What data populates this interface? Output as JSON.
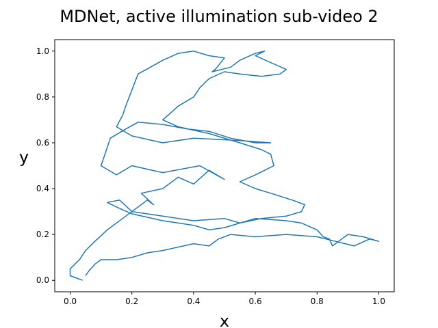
{
  "chart_data": {
    "type": "line",
    "title": "MDNet, active illumination sub-video 2",
    "x_label": "x",
    "y_label": "y",
    "color": "#1f77b4",
    "x": [
      0.04,
      0.0,
      0.0,
      0.03,
      0.05,
      0.08,
      0.12,
      0.17,
      0.2,
      0.25,
      0.27,
      0.23,
      0.3,
      0.35,
      0.4,
      0.45,
      0.5,
      0.42,
      0.3,
      0.2,
      0.15,
      0.1,
      0.12,
      0.13,
      0.18,
      0.22,
      0.3,
      0.38,
      0.45,
      0.52,
      0.6,
      0.65,
      0.55,
      0.4,
      0.3,
      0.2,
      0.15,
      0.17,
      0.18,
      0.2,
      0.22,
      0.26,
      0.3,
      0.35,
      0.4,
      0.45,
      0.5,
      0.47,
      0.46,
      0.52,
      0.55,
      0.6,
      0.63,
      0.6,
      0.65,
      0.7,
      0.68,
      0.62,
      0.55,
      0.5,
      0.45,
      0.42,
      0.4,
      0.35,
      0.3,
      0.35,
      0.45,
      0.55,
      0.62,
      0.65,
      0.66,
      0.6,
      0.55,
      0.6,
      0.65,
      0.72,
      0.76,
      0.75,
      0.7,
      0.62,
      0.55,
      0.5,
      0.45,
      0.4,
      0.3,
      0.2,
      0.15,
      0.12,
      0.16,
      0.2,
      0.3,
      0.4,
      0.5,
      0.55,
      0.6,
      0.7,
      0.75,
      0.8,
      0.82,
      0.84,
      0.85,
      0.88,
      0.9,
      0.95,
      1.0,
      0.97,
      0.92,
      0.86,
      0.8,
      0.7,
      0.6,
      0.52,
      0.48,
      0.45,
      0.4,
      0.3,
      0.25,
      0.2,
      0.15,
      0.1,
      0.08,
      0.06,
      0.05
    ],
    "values": [
      0.0,
      0.02,
      0.05,
      0.09,
      0.13,
      0.17,
      0.22,
      0.27,
      0.3,
      0.35,
      0.33,
      0.38,
      0.4,
      0.45,
      0.42,
      0.48,
      0.44,
      0.5,
      0.47,
      0.5,
      0.46,
      0.5,
      0.58,
      0.62,
      0.66,
      0.69,
      0.68,
      0.66,
      0.65,
      0.62,
      0.6,
      0.6,
      0.61,
      0.62,
      0.6,
      0.63,
      0.67,
      0.72,
      0.76,
      0.83,
      0.9,
      0.93,
      0.96,
      0.99,
      1.0,
      0.98,
      0.97,
      0.92,
      0.91,
      0.93,
      0.96,
      0.99,
      1.0,
      0.98,
      0.95,
      0.92,
      0.9,
      0.89,
      0.9,
      0.91,
      0.88,
      0.84,
      0.8,
      0.76,
      0.7,
      0.67,
      0.64,
      0.6,
      0.57,
      0.55,
      0.5,
      0.46,
      0.43,
      0.4,
      0.38,
      0.35,
      0.33,
      0.3,
      0.28,
      0.27,
      0.25,
      0.23,
      0.22,
      0.24,
      0.26,
      0.29,
      0.32,
      0.34,
      0.35,
      0.3,
      0.28,
      0.26,
      0.27,
      0.25,
      0.27,
      0.26,
      0.25,
      0.22,
      0.19,
      0.18,
      0.15,
      0.18,
      0.2,
      0.19,
      0.17,
      0.18,
      0.15,
      0.17,
      0.19,
      0.2,
      0.19,
      0.2,
      0.18,
      0.15,
      0.16,
      0.13,
      0.12,
      0.1,
      0.09,
      0.09,
      0.07,
      0.04,
      0.02
    ],
    "xlim": [
      -0.05,
      1.05
    ],
    "ylim": [
      -0.05,
      1.05
    ],
    "xticks": [
      {
        "value": 0.0,
        "label": "0.0"
      },
      0.2,
      0.4,
      0.6,
      0.8,
      {
        "value": 1.0,
        "label": "1.0"
      }
    ],
    "yticks": [
      {
        "value": 0.0,
        "label": "0.0"
      },
      0.2,
      0.4,
      0.6,
      0.8,
      {
        "value": 1.0,
        "label": "1.0"
      }
    ]
  }
}
